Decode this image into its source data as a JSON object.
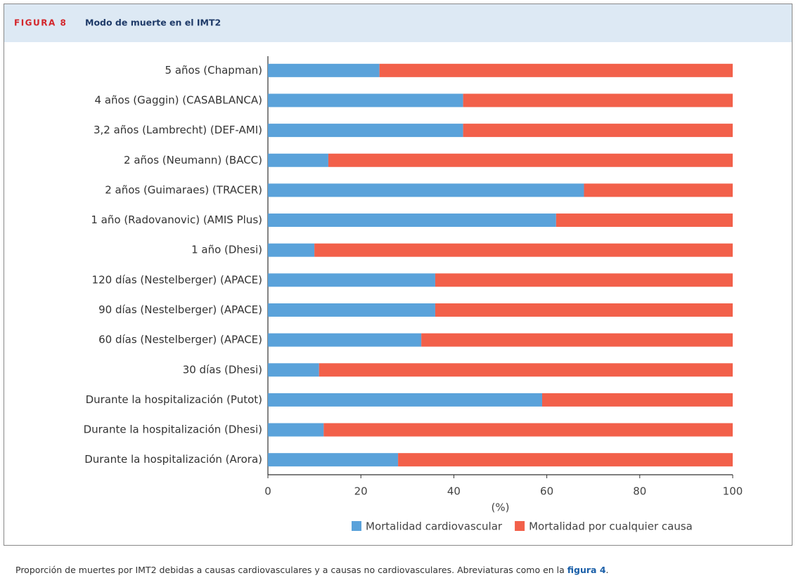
{
  "header": {
    "label": "FIGURA 8",
    "title": "Modo de muerte en el IMT2"
  },
  "chart_data": {
    "type": "bar",
    "orientation": "horizontal",
    "stacked": true,
    "xlabel": "(%)",
    "categories": [
      "5 años (Chapman)",
      "4 años (Gaggin) (CASABLANCA)",
      "3,2 años (Lambrecht) (DEF-AMI)",
      "2 años (Neumann) (BACC)",
      "2 años (Guimaraes) (TRACER)",
      "1 año (Radovanovic) (AMIS Plus)",
      "1 año (Dhesi)",
      "120 días (Nestelberger) (APACE)",
      "90 días (Nestelberger) (APACE)",
      "60 días (Nestelberger) (APACE)",
      "30 días (Dhesi)",
      "Durante la hospitalización (Putot)",
      "Durante la hospitalización (Dhesi)",
      "Durante la hospitalización (Arora)"
    ],
    "series": [
      {
        "name": "Mortalidad cardiovascular",
        "color": "#5aa2da",
        "values": [
          24,
          42,
          42,
          13,
          68,
          62,
          10,
          36,
          36,
          33,
          11,
          59,
          12,
          28
        ]
      },
      {
        "name": "Mortalidad por cualquier causa",
        "color": "#f2604a",
        "values": [
          76,
          58,
          58,
          87,
          32,
          38,
          90,
          64,
          64,
          67,
          89,
          41,
          88,
          72
        ]
      }
    ],
    "xlim": [
      0,
      100
    ],
    "xticks": [
      0,
      20,
      40,
      60,
      80,
      100
    ],
    "legend": "bottom"
  },
  "caption": {
    "text_before": "Proporción de muertes por IMT2 debidas a causas cardiovasculares y a causas no cardiovasculares. Abreviaturas como en la ",
    "link": "figura 4",
    "text_after": "."
  }
}
